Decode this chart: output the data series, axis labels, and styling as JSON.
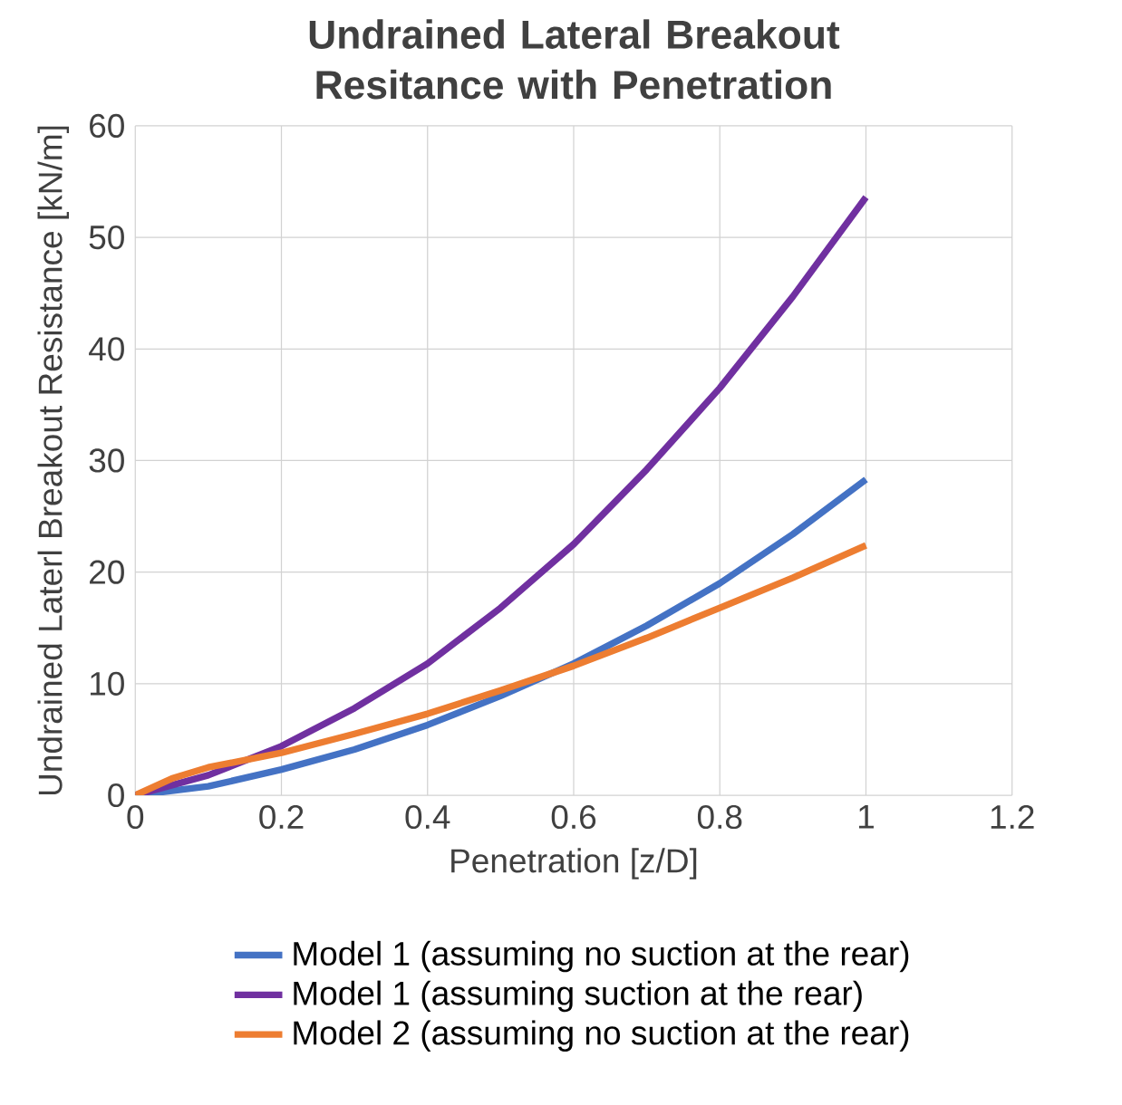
{
  "chart_data": {
    "type": "line",
    "title": "Undrained Lateral Breakout Resitance with Penetration",
    "xlabel": "Penetration [z/D]",
    "ylabel": "Undrained Laterl Breakout Resistance [kN/m]",
    "xlim": [
      0,
      1.2
    ],
    "xticks": [
      0,
      0.2,
      0.4,
      0.6,
      0.8,
      1,
      1.2
    ],
    "ylim": [
      0,
      60
    ],
    "yticks": [
      0,
      10,
      20,
      30,
      40,
      50,
      60
    ],
    "grid": true,
    "legend": "bottom",
    "marker": "none",
    "line_style": "solid",
    "series": [
      {
        "name": "Model 1 (assuming no suction at the rear)",
        "color": "#4472c4",
        "x": [
          0,
          0.1,
          0.2,
          0.3,
          0.4,
          0.5,
          0.6,
          0.7,
          0.8,
          0.9,
          1
        ],
        "values": [
          0,
          0.8,
          2.3,
          4.1,
          6.3,
          8.9,
          11.8,
          15.2,
          19.0,
          23.4,
          28.3
        ]
      },
      {
        "name": "Model 1 (assuming suction at the rear)",
        "color": "#7030a0",
        "x": [
          0,
          0.1,
          0.2,
          0.3,
          0.4,
          0.5,
          0.6,
          0.7,
          0.8,
          0.9,
          1
        ],
        "values": [
          0,
          1.8,
          4.4,
          7.8,
          11.8,
          16.8,
          22.5,
          29.2,
          36.5,
          44.7,
          53.6
        ]
      },
      {
        "name": "Model 2 (assuming no suction at the rear)",
        "color": "#ed7d31",
        "x": [
          0,
          0.05,
          0.1,
          0.2,
          0.3,
          0.4,
          0.5,
          0.6,
          0.7,
          0.8,
          0.9,
          1
        ],
        "values": [
          0,
          1.5,
          2.5,
          3.8,
          5.5,
          7.3,
          9.4,
          11.6,
          14.1,
          16.8,
          19.5,
          22.4
        ]
      }
    ]
  }
}
